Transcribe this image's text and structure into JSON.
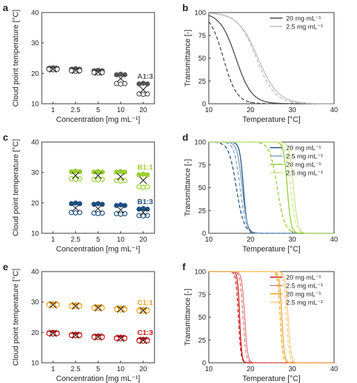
{
  "chart_data": [
    {
      "panel": "a",
      "type": "scatter",
      "side": "left",
      "xlabel": "Concentration [mg mL⁻¹]",
      "ylabel": "Cloud point temperature [°C]",
      "categories": [
        "1",
        "2.5",
        "5",
        "10",
        "20"
      ],
      "ylim": [
        10,
        40
      ],
      "yticks": [
        10,
        20,
        30,
        40
      ],
      "groups": [
        {
          "label_letter": "A",
          "label_ratio": "1:3",
          "color": "#555555",
          "filled": [
            21.7,
            21.4,
            20.9,
            19.6,
            16.6
          ],
          "open": [
            21.3,
            20.8,
            20.2,
            16.6,
            13.2
          ],
          "cross": [
            21.4,
            21.0,
            20.4,
            18.3,
            14.6
          ]
        }
      ]
    },
    {
      "panel": "b",
      "type": "line",
      "side": "right",
      "xlabel": "Temperature [°C]",
      "ylabel": "Transmittance [-]",
      "xlim": [
        10,
        40
      ],
      "ylim": [
        0,
        100
      ],
      "xticks": [
        10,
        20,
        30,
        40
      ],
      "yticks": [
        0,
        25,
        50,
        75,
        100
      ],
      "legend": "top-right",
      "series": [
        {
          "name": "20 mg mL⁻¹",
          "color": "#444444",
          "mid": 16.5,
          "width": 1.9,
          "x_start": 10,
          "dash_mid": 13.5,
          "dash_width": 1.6
        },
        {
          "name": "2.5 mg mL⁻¹",
          "color": "#bbbbbb",
          "mid": 21.8,
          "width": 2.4,
          "x_start": 10,
          "dash_mid": 21.4,
          "dash_width": 2.2
        }
      ]
    },
    {
      "panel": "c",
      "type": "scatter",
      "side": "left",
      "xlabel": "Concentration [mg mL⁻¹]",
      "ylabel": "Cloud point temperature [°C]",
      "categories": [
        "1",
        "2.5",
        "5",
        "10",
        "20"
      ],
      "ylim": [
        10,
        40
      ],
      "yticks": [
        10,
        20,
        30,
        40
      ],
      "groups": [
        {
          "label_letter": "B",
          "label_ratio": "1:1",
          "color": "#9acd32",
          "filled": [
            null,
            30.3,
            30.2,
            30.2,
            29.3
          ],
          "open": [
            null,
            27.9,
            27.7,
            27.3,
            25.2
          ],
          "cross": [
            null,
            29.0,
            29.0,
            28.6,
            27.4
          ]
        },
        {
          "label_letter": "B",
          "label_ratio": "1:3",
          "color": "#1c4f82",
          "filled": [
            null,
            19.8,
            19.6,
            19.2,
            18.0
          ],
          "open": [
            null,
            16.8,
            16.6,
            16.4,
            15.8
          ],
          "cross": [
            null,
            18.3,
            18.1,
            17.7,
            16.9
          ]
        }
      ]
    },
    {
      "panel": "d",
      "type": "line",
      "side": "right",
      "xlabel": "Temperature [°C]",
      "ylabel": "Transmittance [-]",
      "xlim": [
        10,
        40
      ],
      "ylim": [
        0,
        100
      ],
      "xticks": [
        10,
        20,
        30,
        40
      ],
      "yticks": [
        0,
        25,
        50,
        75,
        100
      ],
      "legend": "top-right",
      "series": [
        {
          "name": "20 mg mL⁻¹",
          "color": "#1c4f82",
          "mid": 18.3,
          "width": 0.45,
          "x_start": 10,
          "dash_mid": 16.6,
          "dash_width": 0.9
        },
        {
          "name": "2.5 mg mL⁻¹",
          "color": "#7a9cbf",
          "mid": 18.0,
          "width": 0.6,
          "x_start": 10,
          "dash_mid": 17.5,
          "dash_width": 0.7
        },
        {
          "name": "20 mg mL⁻¹",
          "color": "#8fcc2a",
          "mid": 28.8,
          "width": 0.45,
          "x_start": 10,
          "dash_mid": 26.4,
          "dash_width": 0.9
        },
        {
          "name": "2.5 mg mL⁻¹",
          "color": "#c8e68a",
          "mid": 30.3,
          "width": 0.5,
          "x_start": 10,
          "dash_mid": 29.6,
          "dash_width": 0.6
        }
      ]
    },
    {
      "panel": "e",
      "type": "scatter",
      "side": "left",
      "xlabel": "Concentration [mg mL⁻¹]",
      "ylabel": "Cloud point temperature [°C]",
      "categories": [
        "1",
        "2.5",
        "5",
        "10",
        "20"
      ],
      "ylim": [
        10,
        40
      ],
      "yticks": [
        10,
        20,
        30,
        40
      ],
      "groups": [
        {
          "label_letter": "C",
          "label_ratio": "1:1",
          "color": "#f0a020",
          "filled": [
            29.3,
            28.9,
            28.3,
            27.9,
            27.4
          ],
          "open": [
            29.0,
            28.6,
            28.0,
            27.5,
            27.1
          ],
          "cross": [
            29.1,
            28.7,
            28.1,
            27.7,
            27.2
          ]
        },
        {
          "label_letter": "C",
          "label_ratio": "1:3",
          "color": "#cc1111",
          "filled": [
            19.9,
            19.3,
            18.7,
            18.3,
            17.6
          ],
          "open": [
            19.6,
            19.0,
            18.4,
            18.0,
            17.2
          ],
          "cross": [
            19.7,
            19.1,
            18.5,
            18.1,
            17.4
          ]
        }
      ]
    },
    {
      "panel": "f",
      "type": "line",
      "side": "right",
      "xlabel": "Temperature [°C]",
      "ylabel": "Transmittance [-]",
      "xlim": [
        10,
        40
      ],
      "ylim": [
        0,
        100
      ],
      "xticks": [
        10,
        20,
        30,
        40
      ],
      "yticks": [
        0,
        25,
        50,
        75,
        100
      ],
      "legend": "top-right",
      "series": [
        {
          "name": "20 mg mL⁻¹",
          "color": "#cc1111",
          "mid": 17.4,
          "width": 0.25,
          "x_start": 10,
          "dash_mid": 17.1,
          "dash_width": 0.3
        },
        {
          "name": "2.5 mg mL⁻¹",
          "color": "#e07878",
          "mid": 18.6,
          "width": 0.35,
          "x_start": 10,
          "dash_mid": 18.2,
          "dash_width": 0.35
        },
        {
          "name": "20 mg mL⁻¹",
          "color": "#f0a020",
          "mid": 27.5,
          "width": 0.3,
          "x_start": 10,
          "dash_mid": 27.1,
          "dash_width": 0.3
        },
        {
          "name": "2.5 mg mL⁻¹",
          "color": "#f7c87a",
          "mid": 29.0,
          "width": 0.35,
          "x_start": 10,
          "dash_mid": 28.6,
          "dash_width": 0.35
        }
      ]
    }
  ]
}
